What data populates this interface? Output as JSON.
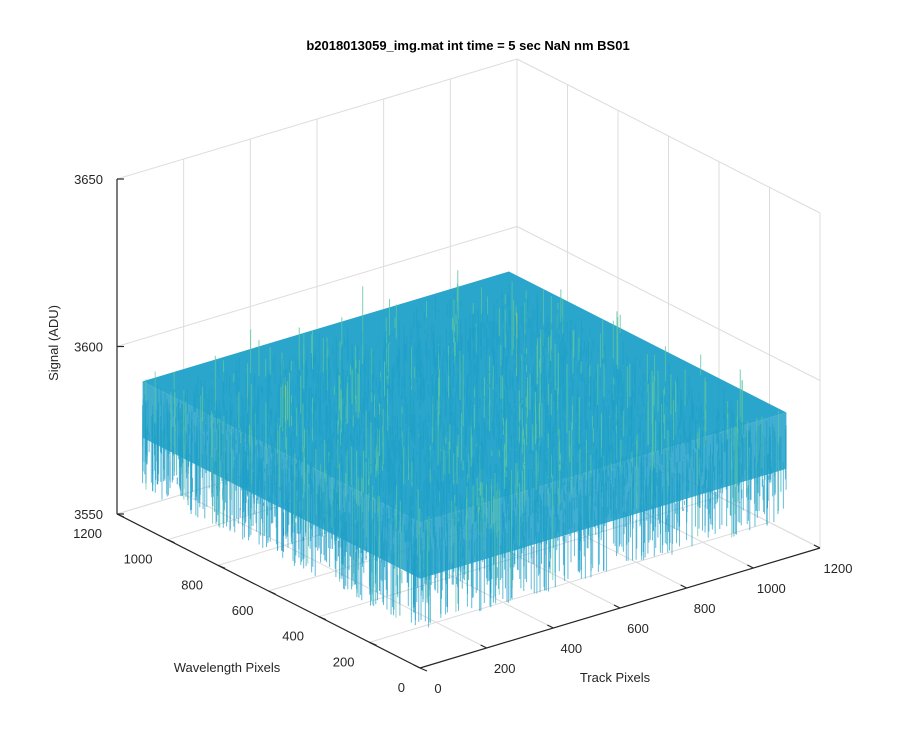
{
  "chart_data": {
    "type": "surface",
    "title": "b2018013059_img.mat int time = 5 sec  NaN nm BS01",
    "xlabel": "Track Pixels",
    "ylabel": "Wavelength Pixels",
    "zlabel": "Signal (ADU)",
    "xlim": [
      0,
      1200
    ],
    "ylim": [
      0,
      1200
    ],
    "zlim": [
      3550,
      3650
    ],
    "x_ticks": [
      "0",
      "200",
      "400",
      "600",
      "800",
      "1000",
      "1200"
    ],
    "y_ticks": [
      "0",
      "200",
      "400",
      "600",
      "800",
      "1000",
      "1200"
    ],
    "z_ticks": [
      "3550",
      "3600",
      "3650"
    ],
    "data_extent": {
      "x": [
        1,
        1100
      ],
      "y": [
        1,
        1100
      ]
    },
    "signal_level": {
      "mean": 3585,
      "spread": 6,
      "min": 3561,
      "max": 3615
    },
    "colormap": "parula",
    "grid": true
  },
  "colors": {
    "axis": "#262626",
    "grid": "#dcdcdc",
    "surface_main": "#1fa0c8",
    "surface_dark": "#1f6fc0",
    "surface_light": "#5cc6a0",
    "surface_highlight": "#b8d050"
  }
}
